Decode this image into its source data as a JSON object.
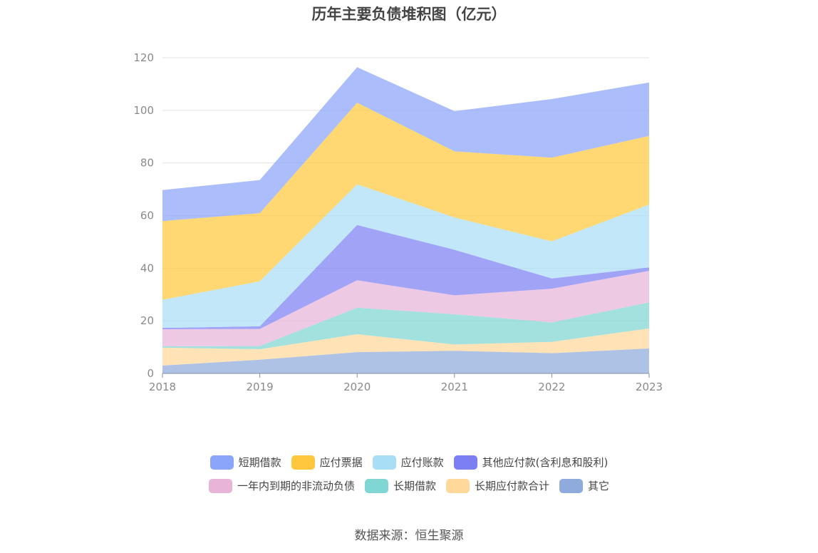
{
  "title": "历年主要负债堆积图（亿元）",
  "source": "数据来源：恒生聚源",
  "chart_data": {
    "type": "area",
    "stacked": true,
    "x": [
      "2018",
      "2019",
      "2020",
      "2021",
      "2022",
      "2023"
    ],
    "ylim": [
      0,
      120
    ],
    "yticks": [
      "0",
      "20",
      "40",
      "60",
      "80",
      "100",
      "120"
    ],
    "grid": true,
    "legend_position": "bottom",
    "series": [
      {
        "name": "其它",
        "color": "#8FAADC",
        "values": [
          3.0,
          5.2,
          8.1,
          8.6,
          7.7,
          9.5
        ]
      },
      {
        "name": "长期应付款合计",
        "color": "#FFD89A",
        "values": [
          6.8,
          4.0,
          6.8,
          2.4,
          4.3,
          7.6
        ]
      },
      {
        "name": "长期借款",
        "color": "#7FD6D2",
        "values": [
          0.5,
          1.2,
          10.1,
          11.5,
          7.4,
          9.9
        ]
      },
      {
        "name": "一年内到期的非流动负债",
        "color": "#E8B4D8",
        "values": [
          6.5,
          6.5,
          10.4,
          7.2,
          12.8,
          12.0
        ]
      },
      {
        "name": "其他应付款(含利息和股利)",
        "color": "#7B7FF2",
        "values": [
          0.5,
          1.0,
          21.0,
          17.3,
          3.9,
          1.3
        ]
      },
      {
        "name": "应付账款",
        "color": "#A9DEF7",
        "values": [
          10.7,
          17.1,
          15.5,
          12.3,
          14.1,
          23.9
        ]
      },
      {
        "name": "应付票据",
        "color": "#FFC73D",
        "values": [
          29.9,
          25.9,
          31.0,
          25.1,
          31.8,
          26.1
        ]
      },
      {
        "name": "短期借款",
        "color": "#8AA5FA",
        "values": [
          11.8,
          12.6,
          13.5,
          15.3,
          22.3,
          20.3
        ]
      }
    ]
  },
  "legend": {
    "row1": [
      "短期借款",
      "应付票据",
      "应付账款",
      "其他应付款(含利息和股利)"
    ],
    "row2": [
      "一年内到期的非流动负债",
      "长期借款",
      "长期应付款合计",
      "其它"
    ],
    "colors": {
      "短期借款": "#8AA5FA",
      "应付票据": "#FFC73D",
      "应付账款": "#A9DEF7",
      "其他应付款(含利息和股利)": "#7B7FF2",
      "一年内到期的非流动负债": "#E8B4D8",
      "长期借款": "#7FD6D2",
      "长期应付款合计": "#FFD89A",
      "其它": "#8FAADC"
    }
  }
}
